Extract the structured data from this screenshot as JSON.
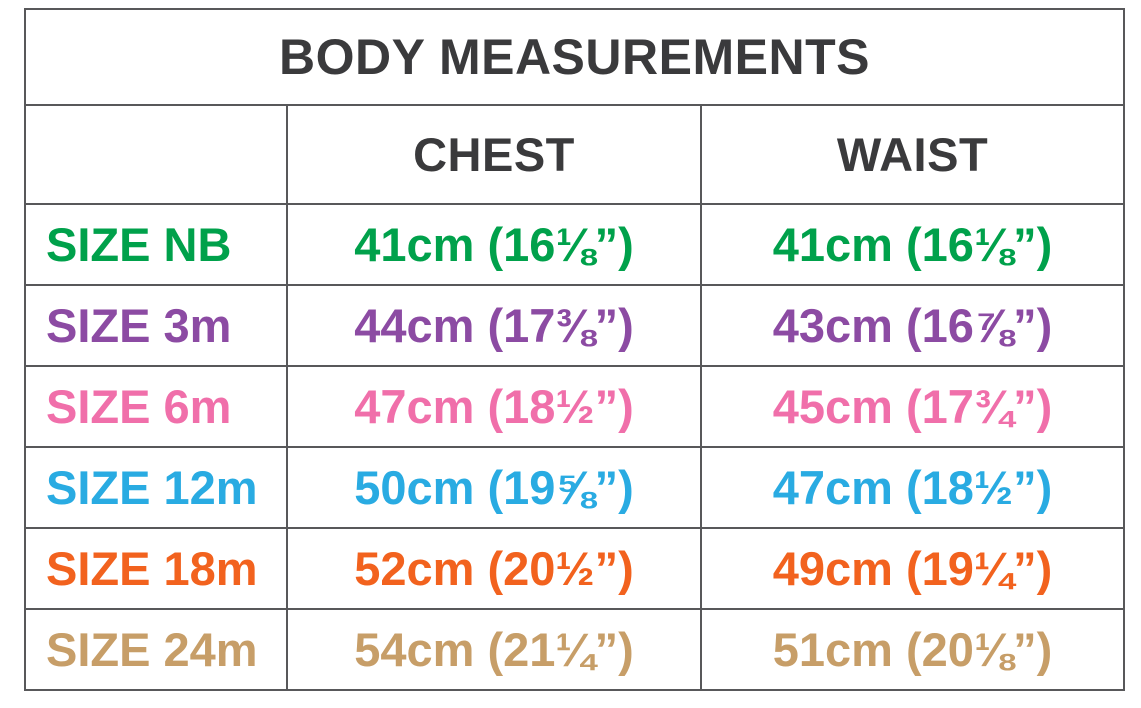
{
  "chart_data": {
    "type": "table",
    "title": "BODY MEASUREMENTS",
    "columns": [
      "",
      "CHEST",
      "WAIST"
    ],
    "rows": [
      {
        "label": "SIZE NB",
        "chest": "41cm (16⅛”)",
        "waist": "41cm (16⅛”)",
        "chest_cm": 41,
        "waist_cm": 41,
        "chest_in": "16 1/8",
        "waist_in": "16 1/8",
        "color": "#00A14B"
      },
      {
        "label": "SIZE 3m",
        "chest": "44cm (17⅜”)",
        "waist": "43cm (16⅞”)",
        "chest_cm": 44,
        "waist_cm": 43,
        "chest_in": "17 3/8",
        "waist_in": "16 7/8",
        "color": "#8C4BA3"
      },
      {
        "label": "SIZE 6m",
        "chest": "47cm (18½”)",
        "waist": "45cm (17¾”)",
        "chest_cm": 47,
        "waist_cm": 45,
        "chest_in": "18 1/2",
        "waist_in": "17 3/4",
        "color": "#F06FAA"
      },
      {
        "label": "SIZE 12m",
        "chest": "50cm (19⅝”)",
        "waist": "47cm (18½”)",
        "chest_cm": 50,
        "waist_cm": 47,
        "chest_in": "19 5/8",
        "waist_in": "18 1/2",
        "color": "#29ABE2"
      },
      {
        "label": "SIZE 18m",
        "chest": "52cm (20½”)",
        "waist": "49cm (19¼”)",
        "chest_cm": 52,
        "waist_cm": 49,
        "chest_in": "20 1/2",
        "waist_in": "19 1/4",
        "color": "#F2621E"
      },
      {
        "label": "SIZE 24m",
        "chest": "54cm (21¼”)",
        "waist": "51cm (20⅛”)",
        "chest_cm": 54,
        "waist_cm": 51,
        "chest_in": "21 1/4",
        "waist_in": "20 1/8",
        "color": "#C79E68"
      }
    ],
    "colors": {
      "heading_text": "#3A3A3C",
      "grid_border": "#58585A"
    },
    "layout": {
      "grid": true,
      "legend": false
    }
  }
}
